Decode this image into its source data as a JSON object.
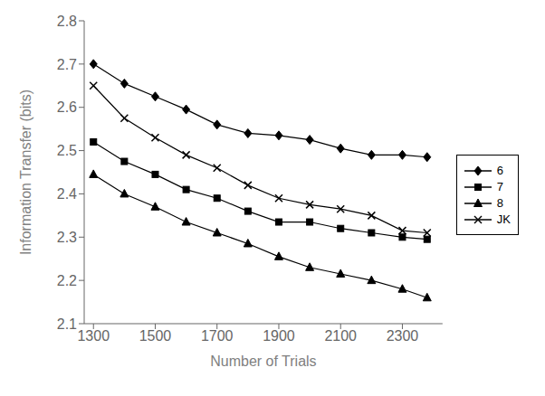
{
  "chart_data": {
    "type": "line",
    "title": "",
    "xlabel": "Number of Trials",
    "ylabel": "Information Transfer (bits)",
    "xlim": [
      1270,
      2430
    ],
    "ylim": [
      2.1,
      2.8
    ],
    "xticks": [
      1300,
      1500,
      1700,
      1900,
      2100,
      2300
    ],
    "yticks": [
      2.1,
      2.2,
      2.3,
      2.4,
      2.5,
      2.6,
      2.7,
      2.8
    ],
    "grid": false,
    "legend": "right",
    "series": [
      {
        "name": "6",
        "marker": "diamond",
        "color": "#000000",
        "x": [
          1300,
          1400,
          1500,
          1600,
          1700,
          1800,
          1900,
          2000,
          2100,
          2200,
          2300,
          2380
        ],
        "values": [
          2.7,
          2.655,
          2.625,
          2.595,
          2.56,
          2.54,
          2.535,
          2.525,
          2.505,
          2.49,
          2.49,
          2.485
        ]
      },
      {
        "name": "7",
        "marker": "square",
        "color": "#000000",
        "x": [
          1300,
          1400,
          1500,
          1600,
          1700,
          1800,
          1900,
          2000,
          2100,
          2200,
          2300,
          2380
        ],
        "values": [
          2.52,
          2.475,
          2.445,
          2.41,
          2.39,
          2.36,
          2.335,
          2.335,
          2.32,
          2.31,
          2.3,
          2.295
        ]
      },
      {
        "name": "8",
        "marker": "triangle",
        "color": "#000000",
        "x": [
          1300,
          1400,
          1500,
          1600,
          1700,
          1800,
          1900,
          2000,
          2100,
          2200,
          2300,
          2380
        ],
        "values": [
          2.445,
          2.4,
          2.37,
          2.335,
          2.31,
          2.285,
          2.255,
          2.23,
          2.215,
          2.2,
          2.18,
          2.16
        ]
      },
      {
        "name": "JK",
        "marker": "x",
        "color": "#000000",
        "x": [
          1300,
          1400,
          1500,
          1600,
          1700,
          1800,
          1900,
          2000,
          2100,
          2200,
          2300,
          2380
        ],
        "values": [
          2.65,
          2.575,
          2.53,
          2.49,
          2.46,
          2.42,
          2.39,
          2.375,
          2.365,
          2.35,
          2.315,
          2.31
        ]
      }
    ]
  }
}
